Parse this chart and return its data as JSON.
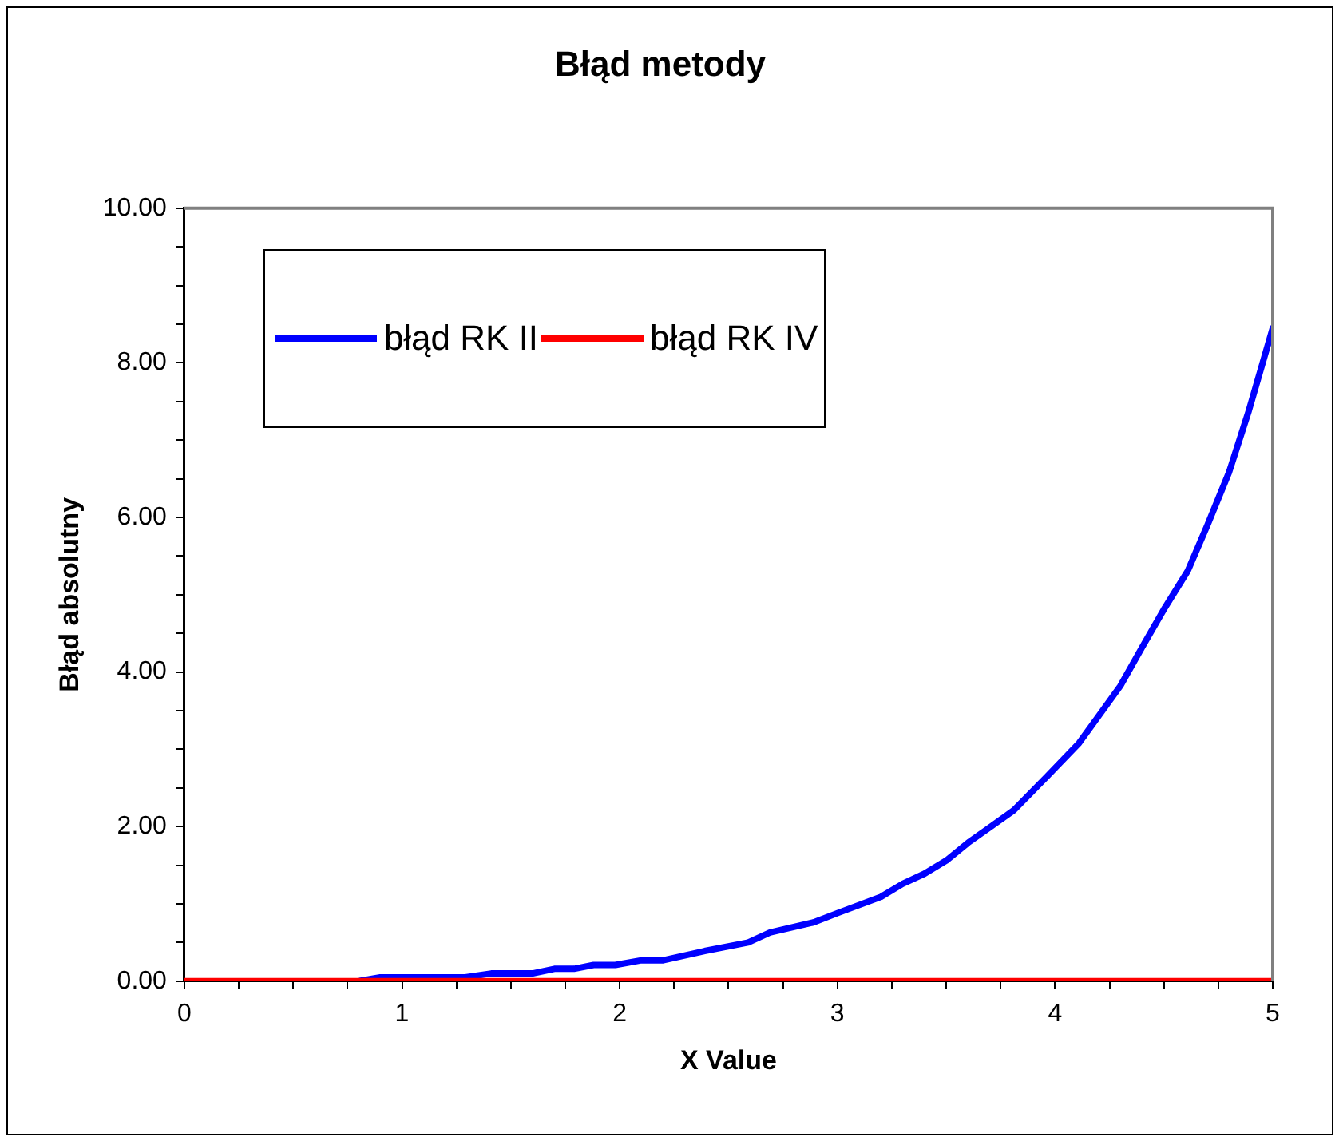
{
  "chart_data": {
    "type": "line",
    "title": "Błąd metody",
    "xlabel": "X Value",
    "ylabel": "Błąd absolutny",
    "xlim": [
      0,
      5
    ],
    "xticks": [
      0,
      {
        "value": 0.25,
        "label": null
      },
      {
        "value": 0.5,
        "label": null
      },
      {
        "value": 0.75,
        "label": null
      },
      1,
      {
        "value": 1.25,
        "label": null
      },
      {
        "value": 1.5,
        "label": null
      },
      {
        "value": 1.75,
        "label": null
      },
      2,
      {
        "value": 2.25,
        "label": null
      },
      {
        "value": 2.5,
        "label": null
      },
      {
        "value": 2.75,
        "label": null
      },
      3,
      {
        "value": 3.25,
        "label": null
      },
      {
        "value": 3.5,
        "label": null
      },
      {
        "value": 3.75,
        "label": null
      },
      4,
      {
        "value": 4.25,
        "label": null
      },
      {
        "value": 4.5,
        "label": null
      },
      {
        "value": 4.75,
        "label": null
      },
      5
    ],
    "ylim": [
      0,
      10
    ],
    "yticks": [
      {
        "value": 0,
        "label": "0.00"
      },
      {
        "value": 0.5,
        "label": null
      },
      {
        "value": 1,
        "label": null
      },
      {
        "value": 1.5,
        "label": null
      },
      {
        "value": 2,
        "label": "2.00"
      },
      {
        "value": 2.5,
        "label": null
      },
      {
        "value": 3,
        "label": null
      },
      {
        "value": 3.5,
        "label": null
      },
      {
        "value": 4,
        "label": "4.00"
      },
      {
        "value": 4.5,
        "label": null
      },
      {
        "value": 5,
        "label": null
      },
      {
        "value": 5.5,
        "label": null
      },
      {
        "value": 6,
        "label": "6.00"
      },
      {
        "value": 6.5,
        "label": null
      },
      {
        "value": 7,
        "label": null
      },
      {
        "value": 7.5,
        "label": null
      },
      {
        "value": 8,
        "label": "8.00"
      },
      {
        "value": 8.5,
        "label": null
      },
      {
        "value": 9,
        "label": null
      },
      {
        "value": 9.5,
        "label": null
      },
      {
        "value": 10,
        "label": "10.00"
      }
    ],
    "grid": false,
    "legend": "top left",
    "marker": "none",
    "line_style": "solid",
    "series": [
      {
        "name": "błąd RK II",
        "color": "#0000ff",
        "x": [
          0.8,
          0.9,
          1.29,
          1.41,
          1.6,
          1.7,
          1.79,
          1.88,
          1.98,
          2.1,
          2.2,
          2.39,
          2.59,
          2.69,
          2.89,
          3.0,
          3.2,
          3.3,
          3.4,
          3.5,
          3.6,
          3.7,
          3.81,
          3.96,
          4.11,
          4.2,
          4.3,
          4.4,
          4.5,
          4.61,
          4.7,
          4.8,
          4.89,
          5
        ],
        "values": [
          0,
          0.05,
          0.05,
          0.1,
          0.1,
          0.16,
          0.16,
          0.21,
          0.21,
          0.27,
          0.27,
          0.39,
          0.5,
          0.63,
          0.76,
          0.88,
          1.09,
          1.26,
          1.39,
          1.56,
          1.79,
          1.99,
          2.21,
          2.64,
          3.08,
          3.43,
          3.82,
          4.32,
          4.81,
          5.31,
          5.9,
          6.59,
          7.38,
          8.45
        ]
      },
      {
        "name": "błąd RK IV",
        "color": "#ff0000",
        "x": [
          0,
          5
        ],
        "values": [
          0,
          0
        ]
      }
    ]
  }
}
